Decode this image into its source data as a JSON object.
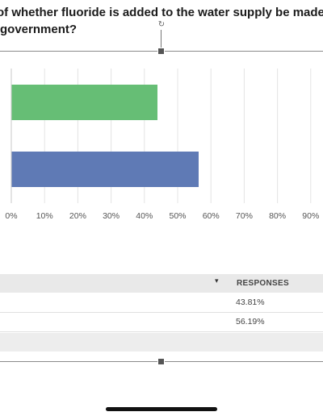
{
  "question": {
    "line1": "of whether fluoride is added to the water supply be made",
    "line2": "government?"
  },
  "handles": {
    "rotate_icon": "rotate-icon",
    "rotate_glyph": "↻"
  },
  "colors": {
    "bar_green": "#66be75",
    "bar_blue": "#5f7ab5",
    "grid": "#e4e4e4"
  },
  "chart_data": {
    "type": "bar",
    "orientation": "horizontal",
    "categories": [
      "",
      ""
    ],
    "values": [
      43.81,
      56.19
    ],
    "bar_colors": [
      "#66be75",
      "#5f7ab5"
    ],
    "xlim": [
      0,
      100
    ],
    "x_ticks": [
      "0%",
      "10%",
      "20%",
      "30%",
      "40%",
      "50%",
      "60%",
      "70%",
      "80%",
      "90%"
    ],
    "grid": true,
    "title": "",
    "xlabel": "",
    "ylabel": ""
  },
  "table": {
    "header_sort_icon": "▾",
    "responses_header": "RESPONSES",
    "rows": [
      {
        "response": "43.81%"
      },
      {
        "response": "56.19%"
      }
    ]
  }
}
